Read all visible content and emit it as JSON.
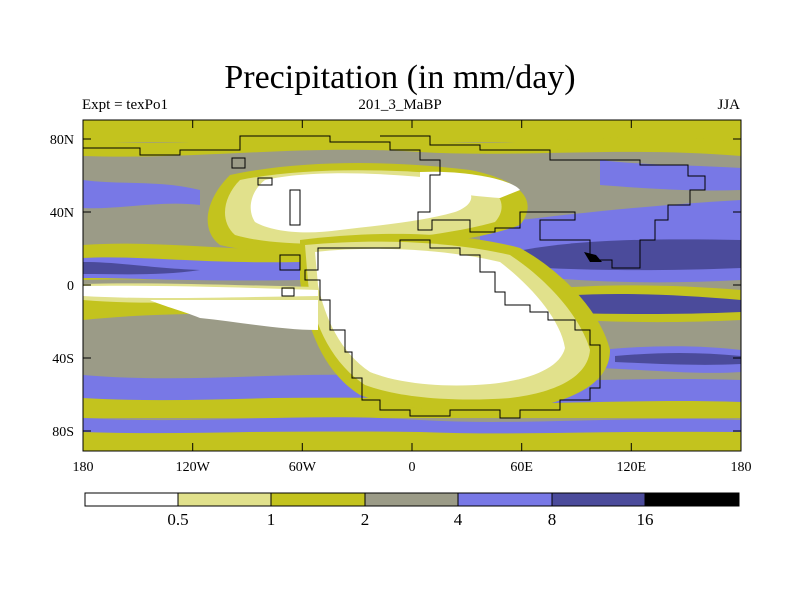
{
  "title": "Precipitation (in mm/day)",
  "subtitle_left": "Expt = texPo1",
  "subtitle_center": "201_3_MaBP",
  "subtitle_right": "JJA",
  "y_ticks": [
    "80N",
    "40N",
    "0",
    "40S",
    "80S"
  ],
  "x_ticks": [
    "180",
    "120W",
    "60W",
    "0",
    "60E",
    "120E",
    "180"
  ],
  "colorbar": {
    "labels": [
      "0.5",
      "1",
      "2",
      "4",
      "8",
      "16"
    ],
    "colors": [
      "#ffffff",
      "#e1e18c",
      "#c3c31e",
      "#9b9b87",
      "#7878e6",
      "#4b4b9b",
      "#000000"
    ]
  }
}
